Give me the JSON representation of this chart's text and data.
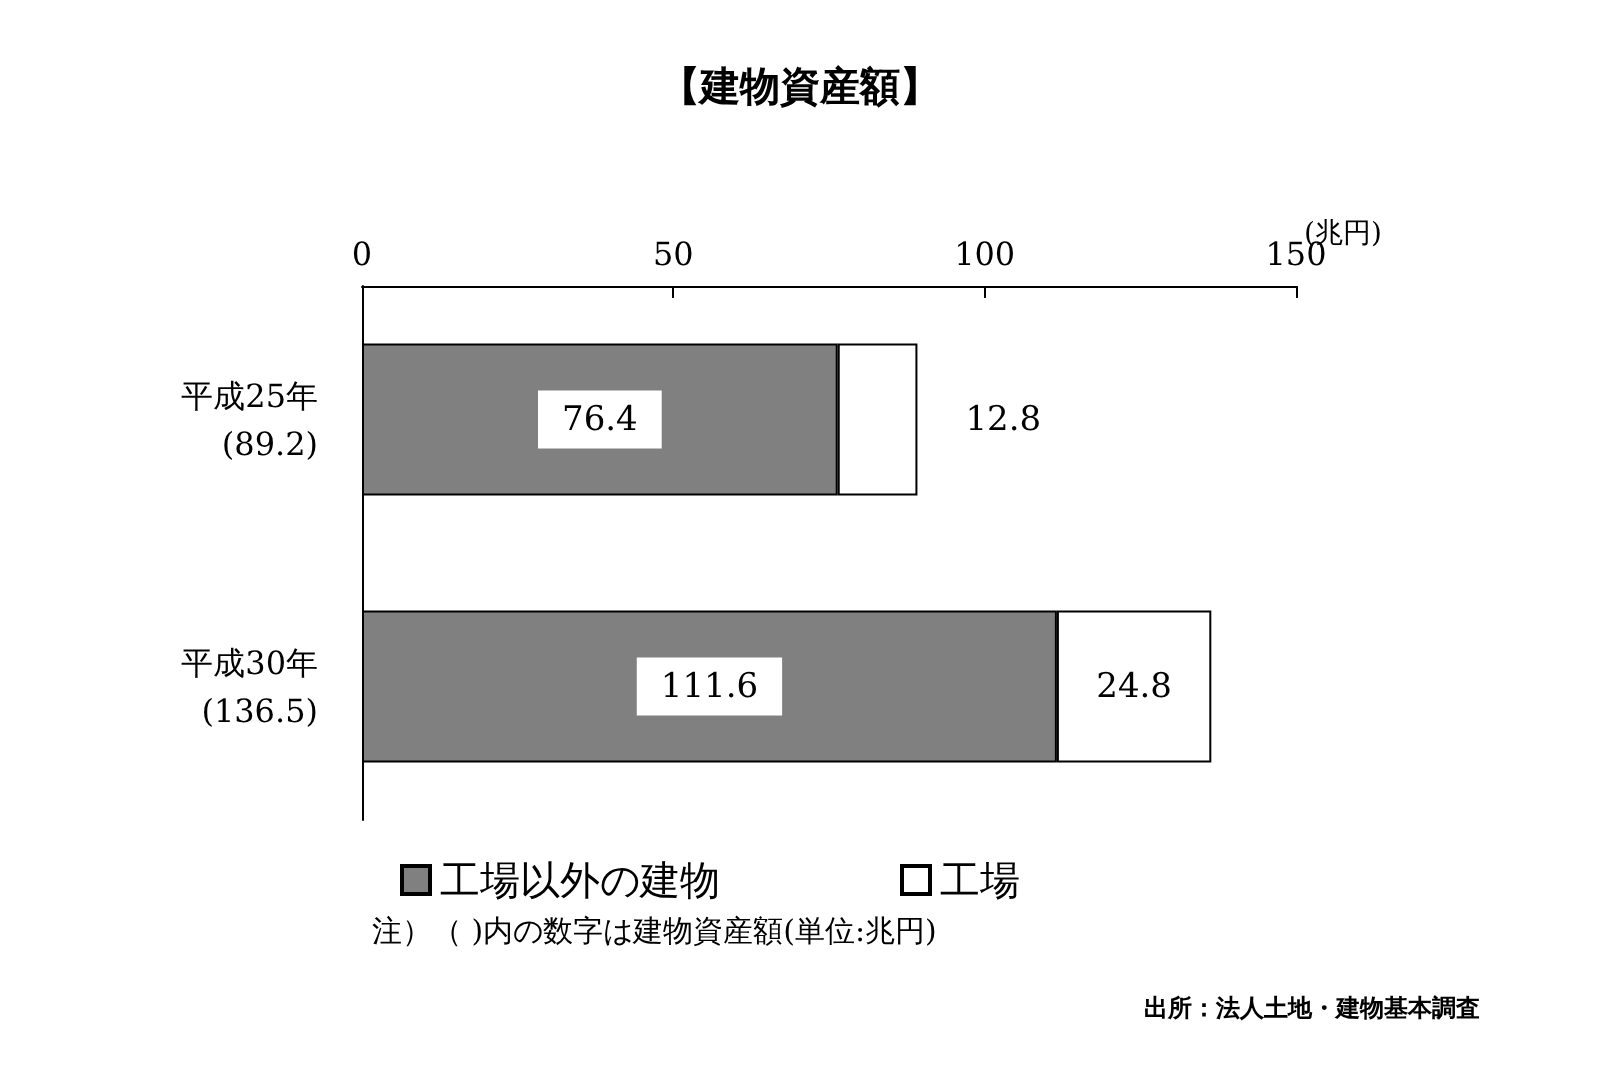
{
  "chart_data": {
    "type": "bar",
    "orientation": "horizontal",
    "stacked": true,
    "title": "【建物資産額】",
    "xlabel": "(兆円)",
    "categories": [
      "平成25年\n(89.2)",
      "平成30年\n(136.5)"
    ],
    "series": [
      {
        "name": "工場以外の建物",
        "color": "#808080",
        "values": [
          76.4,
          111.6
        ]
      },
      {
        "name": "工場",
        "color": "#ffffff",
        "values": [
          12.8,
          24.8
        ]
      }
    ],
    "xlim": [
      0,
      150
    ],
    "xticks": [
      0,
      50,
      100,
      150
    ],
    "grid": false,
    "legend": "bottom",
    "data_labels": true,
    "annotations": [
      "注）（ )内の数字は建物資産額(単位:兆円)",
      "出所：法人土地・建物基本調査"
    ]
  }
}
